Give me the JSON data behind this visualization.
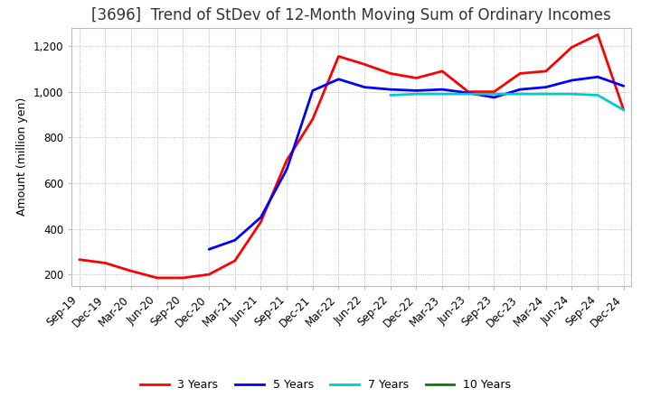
{
  "title": "[3696]  Trend of StDev of 12-Month Moving Sum of Ordinary Incomes",
  "ylabel": "Amount (million yen)",
  "ylim": [
    150,
    1280
  ],
  "yticks": [
    200,
    400,
    600,
    800,
    1000,
    1200
  ],
  "ytick_labels": [
    "200",
    "400",
    "600",
    "800",
    "1,000",
    "1,200"
  ],
  "legend_labels": [
    "3 Years",
    "5 Years",
    "7 Years",
    "10 Years"
  ],
  "legend_colors": [
    "#ff0000",
    "#0000ff",
    "#00cccc",
    "#008000"
  ],
  "x_labels": [
    "Sep-19",
    "Dec-19",
    "Mar-20",
    "Jun-20",
    "Sep-20",
    "Dec-20",
    "Mar-21",
    "Jun-21",
    "Sep-21",
    "Dec-21",
    "Mar-22",
    "Jun-22",
    "Sep-22",
    "Dec-22",
    "Mar-23",
    "Jun-23",
    "Sep-23",
    "Dec-23",
    "Mar-24",
    "Jun-24",
    "Sep-24",
    "Dec-24"
  ],
  "series_3y": [
    265,
    250,
    215,
    185,
    185,
    200,
    260,
    430,
    700,
    880,
    1155,
    1120,
    1080,
    1060,
    1090,
    1000,
    1000,
    1080,
    1090,
    1195,
    1250,
    920
  ],
  "series_5y": [
    null,
    null,
    null,
    null,
    null,
    310,
    350,
    450,
    660,
    1005,
    1055,
    1020,
    1010,
    1005,
    1010,
    995,
    975,
    1010,
    1020,
    1050,
    1065,
    1025
  ],
  "series_7y": [
    null,
    null,
    null,
    null,
    null,
    null,
    null,
    null,
    null,
    null,
    null,
    null,
    985,
    990,
    990,
    990,
    990,
    990,
    990,
    990,
    985,
    920
  ],
  "series_10y": [
    null,
    null,
    null,
    null,
    null,
    null,
    null,
    null,
    null,
    null,
    null,
    null,
    null,
    null,
    null,
    null,
    null,
    null,
    null,
    null,
    null,
    null
  ],
  "background_color": "#ffffff",
  "grid_color": "#aaaaaa",
  "title_fontsize": 12,
  "axis_fontsize": 9,
  "tick_fontsize": 8.5,
  "line_width": 2.0
}
